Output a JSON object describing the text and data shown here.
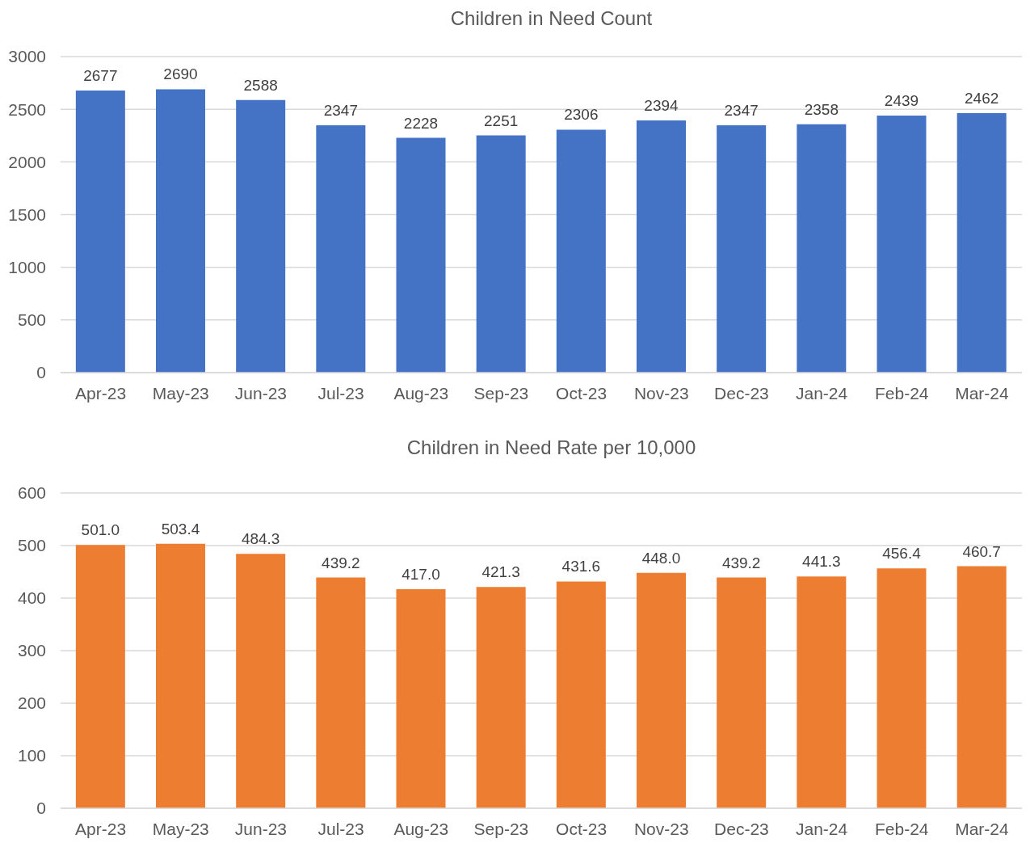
{
  "chart_data": [
    {
      "type": "bar",
      "title": "Children in Need Count",
      "categories": [
        "Apr-23",
        "May-23",
        "Jun-23",
        "Jul-23",
        "Aug-23",
        "Sep-23",
        "Oct-23",
        "Nov-23",
        "Dec-23",
        "Jan-24",
        "Feb-24",
        "Mar-24"
      ],
      "values": [
        2677,
        2690,
        2588,
        2347,
        2228,
        2251,
        2306,
        2394,
        2347,
        2358,
        2439,
        2462
      ],
      "color": "#4472c4",
      "ylim": [
        0,
        3000
      ],
      "yticks": [
        0,
        500,
        1000,
        1500,
        2000,
        2500,
        3000
      ],
      "grid": "y",
      "data_labels": true
    },
    {
      "type": "bar",
      "title": "Children in Need Rate per 10,000",
      "categories": [
        "Apr-23",
        "May-23",
        "Jun-23",
        "Jul-23",
        "Aug-23",
        "Sep-23",
        "Oct-23",
        "Nov-23",
        "Dec-23",
        "Jan-24",
        "Feb-24",
        "Mar-24"
      ],
      "values": [
        501.0,
        503.4,
        484.3,
        439.2,
        417.0,
        421.3,
        431.6,
        448.0,
        439.2,
        441.3,
        456.4,
        460.7
      ],
      "value_labels": [
        "501.0",
        "503.4",
        "484.3",
        "439.2",
        "417.0",
        "421.3",
        "431.6",
        "448.0",
        "439.2",
        "441.3",
        "456.4",
        "460.7"
      ],
      "color": "#ed7d31",
      "ylim": [
        0,
        600
      ],
      "yticks": [
        0,
        100,
        200,
        300,
        400,
        500,
        600
      ],
      "grid": "y"
    }
  ]
}
